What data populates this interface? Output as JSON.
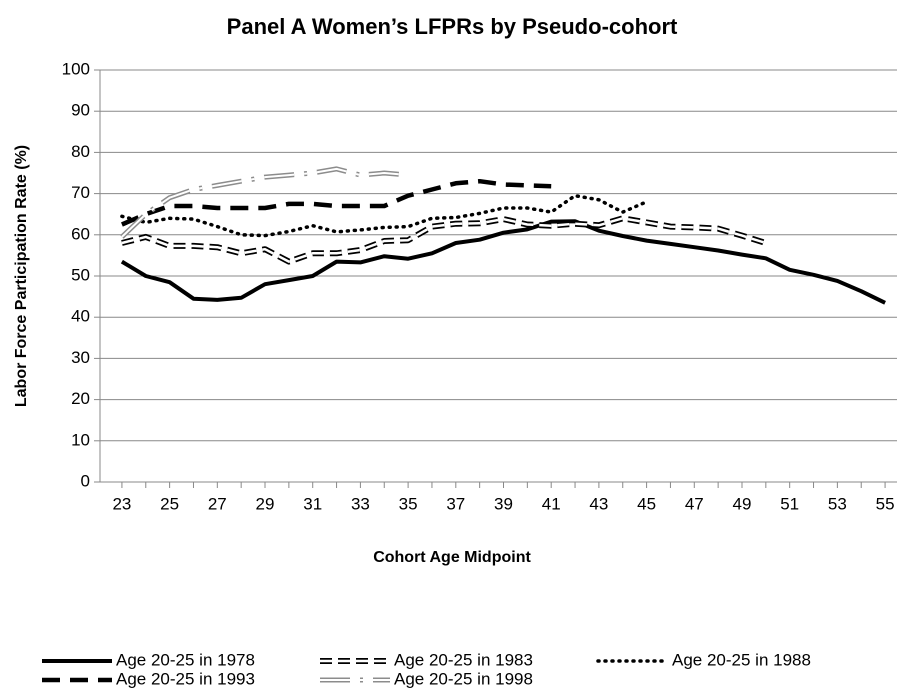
{
  "chart_data": {
    "type": "line",
    "title": "Panel A Women’s LFPRs by Pseudo-cohort",
    "x_label": "Cohort Age Midpoint",
    "y_label": "Labor Force Participation Rate (%)",
    "categories": [
      23,
      null,
      25,
      null,
      27,
      null,
      29,
      null,
      31,
      null,
      33,
      null,
      35,
      null,
      37,
      null,
      39,
      null,
      41,
      null,
      43,
      null,
      45,
      null,
      47,
      null,
      49,
      null,
      51,
      null,
      53,
      null,
      55
    ],
    "ylim": [
      0,
      100
    ],
    "yticks": [
      0,
      10,
      20,
      30,
      40,
      50,
      60,
      70,
      80,
      90,
      100
    ],
    "grid": true,
    "series": [
      {
        "name": "Age 20-25 in 1978",
        "color": "#000000",
        "style": "solid",
        "values": [
          53.5,
          50,
          48.5,
          44.5,
          44.2,
          44.7,
          48,
          49,
          50,
          53.5,
          53.3,
          54.8,
          54.2,
          55.5,
          58,
          58.8,
          60.5,
          61.3,
          63.2,
          63.3,
          61,
          59.7,
          58.6,
          57.8,
          57,
          56.2,
          55.2,
          54.3,
          51.5,
          50.3,
          48.8,
          46.3,
          43.5
        ]
      },
      {
        "name": "Age 20-25 in 1983",
        "color": "#000000",
        "style": "open-dash",
        "values": [
          58,
          59.5,
          57.3,
          57.3,
          57,
          55.5,
          56.5,
          53.5,
          55.5,
          55.5,
          56.3,
          58.5,
          58.7,
          62,
          62.7,
          62.8,
          63.8,
          62.5,
          62.2,
          62.7,
          62.3,
          64,
          63,
          62,
          61.8,
          61.5,
          59.8,
          58,
          null,
          null,
          null,
          null,
          null
        ]
      },
      {
        "name": "Age 20-25 in 1988",
        "color": "#000000",
        "style": "dotted",
        "values": [
          64.5,
          63,
          64,
          63.8,
          62,
          60,
          59.8,
          60.8,
          62.2,
          60.7,
          61.2,
          61.8,
          62,
          64,
          64.2,
          65.2,
          66.5,
          66.5,
          65.5,
          69.5,
          68.5,
          65.5,
          68,
          null,
          null,
          null,
          null,
          null,
          null,
          null,
          null,
          null,
          null
        ]
      },
      {
        "name": "Age 20-25 in 1993",
        "color": "#000000",
        "style": "dashed",
        "values": [
          62.5,
          65,
          67,
          67,
          66.5,
          66.5,
          66.5,
          67.5,
          67.5,
          67,
          67,
          67,
          69.5,
          71,
          72.5,
          73,
          72.2,
          72,
          71.8,
          null,
          null,
          null,
          null,
          null,
          null,
          null,
          null,
          null,
          null,
          null,
          null,
          null,
          null
        ]
      },
      {
        "name": "Age 20-25 in 1998",
        "color": "#8c8c8c",
        "style": "double-dash-dot",
        "values": [
          59.5,
          65,
          69,
          71,
          72,
          73,
          74,
          74.5,
          75,
          76,
          74.5,
          75,
          74.5,
          null,
          null,
          null,
          null,
          null,
          null,
          null,
          null,
          null,
          null,
          null,
          null,
          null,
          null,
          null,
          null,
          null,
          null,
          null,
          null
        ]
      }
    ]
  }
}
